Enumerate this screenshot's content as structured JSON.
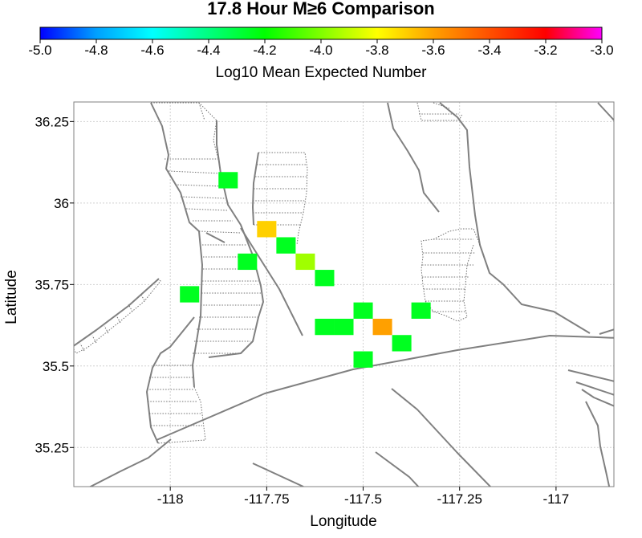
{
  "title": "17.8 Hour M≥6 Comparison",
  "colorbar": {
    "label": "Log10 Mean Expected Number",
    "min": -5.0,
    "max": -3.0,
    "ticks": [
      "-5.0",
      "-4.8",
      "-4.6",
      "-4.4",
      "-4.2",
      "-4.0",
      "-3.8",
      "-3.6",
      "-3.4",
      "-3.2",
      "-3.0"
    ],
    "colors": [
      "#0000ff",
      "#00a0ff",
      "#00ffff",
      "#00ff80",
      "#00ff00",
      "#80ff00",
      "#ffff00",
      "#ffa000",
      "#ff5000",
      "#ff0000",
      "#ff00ff"
    ]
  },
  "axes": {
    "xlabel": "Longitude",
    "ylabel": "Latitude",
    "xticks": [
      "-118",
      "-117.75",
      "-117.5",
      "-117.25",
      "-117"
    ],
    "yticks": [
      "36.25",
      "36",
      "35.75",
      "35.5",
      "35.25"
    ]
  },
  "chart_data": {
    "type": "heatmap",
    "title": "17.8 Hour M≥6 Comparison",
    "xlabel": "Longitude",
    "ylabel": "Latitude",
    "xlim": [
      -118.25,
      -116.85
    ],
    "ylim": [
      35.13,
      36.31
    ],
    "grid": true,
    "cells": [
      {
        "lon": -117.85,
        "lat": 36.07,
        "value": -4.25
      },
      {
        "lon": -117.75,
        "lat": 35.92,
        "value": -3.7
      },
      {
        "lon": -117.7,
        "lat": 35.87,
        "value": -4.25
      },
      {
        "lon": -117.8,
        "lat": 35.82,
        "value": -4.25
      },
      {
        "lon": -117.65,
        "lat": 35.82,
        "value": -3.95
      },
      {
        "lon": -117.6,
        "lat": 35.77,
        "value": -4.25
      },
      {
        "lon": -117.95,
        "lat": 35.72,
        "value": -4.25
      },
      {
        "lon": -117.5,
        "lat": 35.67,
        "value": -4.25
      },
      {
        "lon": -117.35,
        "lat": 35.67,
        "value": -4.25
      },
      {
        "lon": -117.6,
        "lat": 35.62,
        "value": -4.25
      },
      {
        "lon": -117.55,
        "lat": 35.62,
        "value": -4.25
      },
      {
        "lon": -117.45,
        "lat": 35.62,
        "value": -3.6
      },
      {
        "lon": -117.4,
        "lat": 35.57,
        "value": -4.25
      },
      {
        "lon": -117.5,
        "lat": 35.52,
        "value": -4.25
      }
    ]
  }
}
